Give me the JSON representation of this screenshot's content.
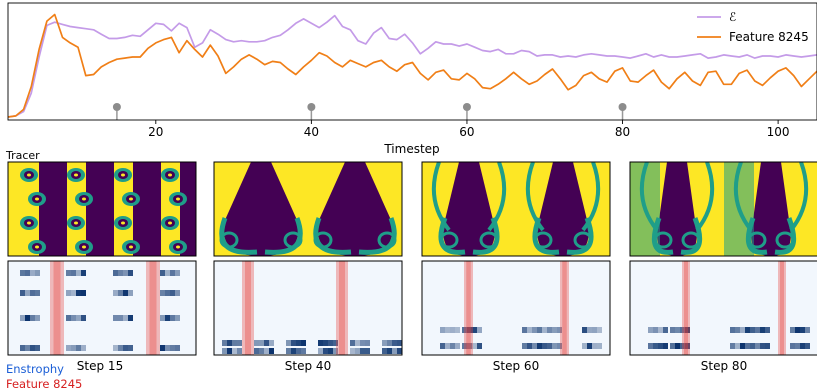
{
  "chart_data": {
    "type": "line",
    "xlabel": "Timestep",
    "ylabel": "",
    "xlim": [
      1,
      105
    ],
    "ylim": [
      0,
      1
    ],
    "xticks": [
      20,
      40,
      60,
      80,
      100
    ],
    "legend_position": "top-right",
    "grid": false,
    "series": [
      {
        "name": "ℰ",
        "color": "#c49be8",
        "x": [
          1,
          2,
          3,
          4,
          5,
          6,
          7,
          8,
          9,
          10,
          11,
          12,
          13,
          14,
          15,
          16,
          17,
          18,
          19,
          20,
          21,
          22,
          23,
          24,
          25,
          26,
          27,
          28,
          29,
          30,
          31,
          32,
          33,
          34,
          35,
          36,
          37,
          38,
          39,
          40,
          41,
          42,
          43,
          44,
          45,
          46,
          47,
          48,
          49,
          50,
          51,
          52,
          53,
          54,
          55,
          56,
          57,
          58,
          59,
          60,
          61,
          62,
          63,
          64,
          65,
          66,
          67,
          68,
          69,
          70,
          71,
          72,
          73,
          74,
          75,
          76,
          77,
          78,
          79,
          80,
          81,
          82,
          83,
          84,
          85,
          86,
          87,
          88,
          89,
          90,
          91,
          92,
          93,
          94,
          95,
          96,
          97,
          98,
          99,
          100,
          101,
          102,
          103,
          104,
          105
        ],
        "y": [
          0.0,
          0.01,
          0.05,
          0.22,
          0.55,
          0.84,
          0.87,
          0.85,
          0.83,
          0.82,
          0.81,
          0.8,
          0.76,
          0.72,
          0.72,
          0.73,
          0.75,
          0.74,
          0.8,
          0.86,
          0.85,
          0.79,
          0.86,
          0.82,
          0.64,
          0.68,
          0.8,
          0.76,
          0.71,
          0.69,
          0.7,
          0.69,
          0.69,
          0.7,
          0.73,
          0.75,
          0.8,
          0.86,
          0.9,
          0.86,
          0.82,
          0.87,
          0.93,
          0.83,
          0.8,
          0.7,
          0.67,
          0.77,
          0.82,
          0.72,
          0.71,
          0.76,
          0.68,
          0.58,
          0.63,
          0.69,
          0.67,
          0.67,
          0.65,
          0.67,
          0.64,
          0.61,
          0.6,
          0.62,
          0.58,
          0.58,
          0.61,
          0.6,
          0.56,
          0.57,
          0.57,
          0.55,
          0.56,
          0.55,
          0.57,
          0.58,
          0.57,
          0.56,
          0.56,
          0.55,
          0.54,
          0.56,
          0.58,
          0.55,
          0.57,
          0.55,
          0.55,
          0.56,
          0.57,
          0.58,
          0.54,
          0.55,
          0.57,
          0.56,
          0.55,
          0.57,
          0.54,
          0.56,
          0.56,
          0.55,
          0.57,
          0.56,
          0.55,
          0.56,
          0.57
        ]
      },
      {
        "name": "Feature 8245",
        "color": "#f07f17",
        "x": [
          1,
          2,
          3,
          4,
          5,
          6,
          7,
          8,
          9,
          10,
          11,
          12,
          13,
          14,
          15,
          16,
          17,
          18,
          19,
          20,
          21,
          22,
          23,
          24,
          25,
          26,
          27,
          28,
          29,
          30,
          31,
          32,
          33,
          34,
          35,
          36,
          37,
          38,
          39,
          40,
          41,
          42,
          43,
          44,
          45,
          46,
          47,
          48,
          49,
          50,
          51,
          52,
          53,
          54,
          55,
          56,
          57,
          58,
          59,
          60,
          61,
          62,
          63,
          64,
          65,
          66,
          67,
          68,
          69,
          70,
          71,
          72,
          73,
          74,
          75,
          76,
          77,
          78,
          79,
          80,
          81,
          82,
          83,
          84,
          85,
          86,
          87,
          88,
          89,
          90,
          91,
          92,
          93,
          94,
          95,
          96,
          97,
          98,
          99,
          100,
          101,
          102,
          103,
          104,
          105
        ],
        "y": [
          0.0,
          0.01,
          0.07,
          0.28,
          0.62,
          0.88,
          0.94,
          0.73,
          0.68,
          0.64,
          0.38,
          0.39,
          0.46,
          0.5,
          0.53,
          0.54,
          0.55,
          0.55,
          0.63,
          0.68,
          0.71,
          0.73,
          0.59,
          0.7,
          0.62,
          0.55,
          0.66,
          0.56,
          0.4,
          0.46,
          0.53,
          0.57,
          0.53,
          0.48,
          0.51,
          0.5,
          0.44,
          0.39,
          0.46,
          0.52,
          0.59,
          0.56,
          0.5,
          0.46,
          0.52,
          0.49,
          0.46,
          0.5,
          0.52,
          0.46,
          0.42,
          0.48,
          0.5,
          0.4,
          0.34,
          0.41,
          0.43,
          0.35,
          0.34,
          0.4,
          0.35,
          0.27,
          0.26,
          0.3,
          0.35,
          0.41,
          0.35,
          0.3,
          0.33,
          0.39,
          0.44,
          0.35,
          0.25,
          0.29,
          0.38,
          0.41,
          0.35,
          0.32,
          0.42,
          0.45,
          0.33,
          0.32,
          0.38,
          0.43,
          0.32,
          0.26,
          0.35,
          0.41,
          0.33,
          0.29,
          0.41,
          0.42,
          0.3,
          0.3,
          0.4,
          0.43,
          0.33,
          0.29,
          0.36,
          0.42,
          0.45,
          0.38,
          0.28,
          0.35,
          0.42
        ]
      }
    ],
    "markers": [
      15,
      40,
      60,
      80
    ]
  },
  "labels": {
    "tracer": "Tracer",
    "entropy_legend": "Enstrophy",
    "feature_legend": "Feature 8245",
    "steps": [
      "Step 15",
      "Step 40",
      "Step 60",
      "Step 80"
    ]
  },
  "colors": {
    "tracer_dark": "#440154",
    "tracer_yellow": "#fde725",
    "tracer_teal": "#1f9e89",
    "entropy_blue": "#08306b",
    "feature_red": "#e8413c"
  }
}
